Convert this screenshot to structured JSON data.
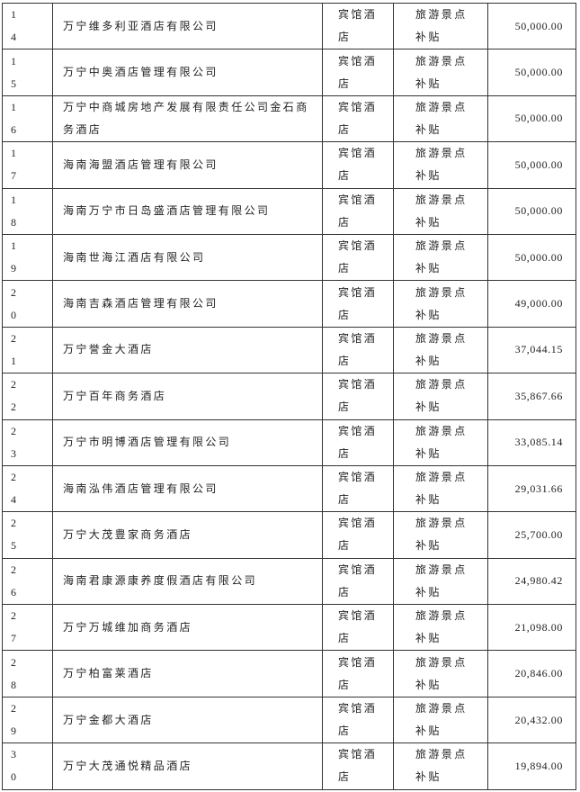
{
  "table": {
    "rows": [
      [
        "14",
        "万宁维多利亚酒店有限公司",
        "宾馆酒店",
        "旅游景点补贴",
        "50,000.00"
      ],
      [
        "15",
        "万宁中奥酒店管理有限公司",
        "宾馆酒店",
        "旅游景点补贴",
        "50,000.00"
      ],
      [
        "16",
        "万宁中商城房地产发展有限责任公司金石商务酒店",
        "宾馆酒店",
        "旅游景点补贴",
        "50,000.00"
      ],
      [
        "17",
        "海南海盟酒店管理有限公司",
        "宾馆酒店",
        "旅游景点补贴",
        "50,000.00"
      ],
      [
        "18",
        "海南万宁市日岛盛酒店管理有限公司",
        "宾馆酒店",
        "旅游景点补贴",
        "50,000.00"
      ],
      [
        "19",
        "海南世海江酒店有限公司",
        "宾馆酒店",
        "旅游景点补贴",
        "50,000.00"
      ],
      [
        "20",
        "海南吉森酒店管理有限公司",
        "宾馆酒店",
        "旅游景点补贴",
        "49,000.00"
      ],
      [
        "21",
        "万宁誉金大酒店",
        "宾馆酒店",
        "旅游景点补贴",
        "37,044.15"
      ],
      [
        "22",
        "万宁百年商务酒店",
        "宾馆酒店",
        "旅游景点补贴",
        "35,867.66"
      ],
      [
        "23",
        "万宁市明博酒店管理有限公司",
        "宾馆酒店",
        "旅游景点补贴",
        "33,085.14"
      ],
      [
        "24",
        "海南泓伟酒店管理有限公司",
        "宾馆酒店",
        "旅游景点补贴",
        "29,031.66"
      ],
      [
        "25",
        "万宁大茂豊家商务酒店",
        "宾馆酒店",
        "旅游景点补贴",
        "25,700.00"
      ],
      [
        "26",
        "海南君康源康养度假酒店有限公司",
        "宾馆酒店",
        "旅游景点补贴",
        "24,980.42"
      ],
      [
        "27",
        "万宁万城维加商务酒店",
        "宾馆酒店",
        "旅游景点补贴",
        "21,098.00"
      ],
      [
        "28",
        "万宁柏富莱酒店",
        "宾馆酒店",
        "旅游景点补贴",
        "20,846.00"
      ],
      [
        "29",
        "万宁金都大酒店",
        "宾馆酒店",
        "旅游景点补贴",
        "20,432.00"
      ],
      [
        "30",
        "万宁大茂通悦精品酒店",
        "宾馆酒店",
        "旅游景点补贴",
        "19,894.00"
      ]
    ]
  }
}
